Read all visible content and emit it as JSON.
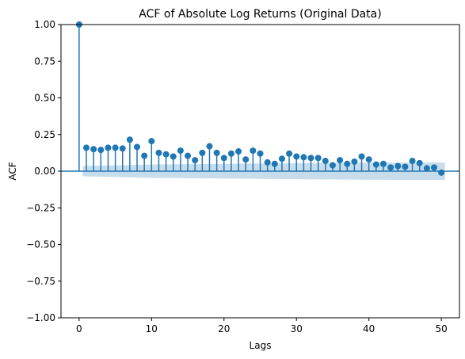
{
  "chart_data": {
    "type": "stem",
    "title": "ACF of Absolute Log Returns (Original Data)",
    "xlabel": "Lags",
    "ylabel": "ACF",
    "xlim": [
      -2.5,
      52.5
    ],
    "ylim": [
      -1.0,
      1.0
    ],
    "xticks": [
      0,
      10,
      20,
      30,
      40,
      50
    ],
    "yticks": [
      -1.0,
      -0.75,
      -0.5,
      -0.25,
      0.0,
      0.25,
      0.5,
      0.75,
      1.0
    ],
    "xtick_labels": [
      "0",
      "10",
      "20",
      "30",
      "40",
      "50"
    ],
    "ytick_labels": [
      "−1.00",
      "−0.75",
      "−0.50",
      "−0.25",
      "0.00",
      "0.25",
      "0.50",
      "0.75",
      "1.00"
    ],
    "lags": [
      0,
      1,
      2,
      3,
      4,
      5,
      6,
      7,
      8,
      9,
      10,
      11,
      12,
      13,
      14,
      15,
      16,
      17,
      18,
      19,
      20,
      21,
      22,
      23,
      24,
      25,
      26,
      27,
      28,
      29,
      30,
      31,
      32,
      33,
      34,
      35,
      36,
      37,
      38,
      39,
      40,
      41,
      42,
      43,
      44,
      45,
      46,
      47,
      48,
      49,
      50
    ],
    "acf": [
      1.0,
      0.16,
      0.15,
      0.145,
      0.16,
      0.16,
      0.155,
      0.215,
      0.165,
      0.105,
      0.205,
      0.125,
      0.115,
      0.1,
      0.14,
      0.105,
      0.075,
      0.125,
      0.17,
      0.125,
      0.09,
      0.12,
      0.135,
      0.08,
      0.14,
      0.12,
      0.06,
      0.05,
      0.085,
      0.12,
      0.1,
      0.095,
      0.09,
      0.09,
      0.07,
      0.04,
      0.075,
      0.05,
      0.065,
      0.1,
      0.08,
      0.045,
      0.05,
      0.025,
      0.035,
      0.03,
      0.07,
      0.055,
      0.02,
      0.025,
      -0.01
    ],
    "confidence_band": {
      "lags": [
        0.5,
        10,
        20,
        30,
        40,
        50.5
      ],
      "lower": [
        -0.035,
        -0.045,
        -0.05,
        -0.055,
        -0.058,
        -0.06
      ],
      "upper": [
        0.035,
        0.045,
        0.05,
        0.055,
        0.058,
        0.06
      ]
    },
    "grid": false,
    "colors": {
      "stem": "#1f77b4",
      "band": "#1f77b4",
      "zero_line": "#1f77b4"
    }
  }
}
